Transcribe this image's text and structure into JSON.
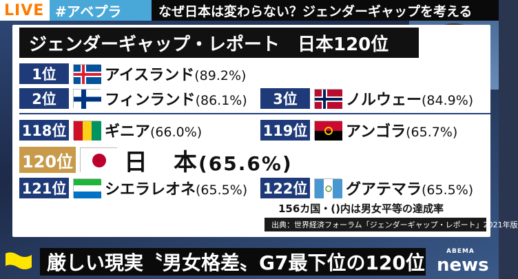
{
  "topbar": {
    "live": "LIVE",
    "hashtag": "#アベプラ",
    "topic": "なぜ日本は変わらない？ジェンダーギャップを考える"
  },
  "panel": {
    "title": "ジェンダーギャップ・レポート　日本120位",
    "rankings": [
      {
        "rank": "1位",
        "country": "アイスランド",
        "pct": "(89.2%)",
        "flag": "iceland-flag"
      },
      {
        "rank": "2位",
        "country": "フィンランド",
        "pct": "(86.1%)",
        "flag": "finland-flag"
      },
      {
        "rank": "3位",
        "country": "ノルウェー",
        "pct": "(84.9%)",
        "flag": "norway-flag"
      },
      {
        "rank": "118位",
        "country": "ギニア",
        "pct": "(66.0%)",
        "flag": "guinea-flag"
      },
      {
        "rank": "119位",
        "country": "アンゴラ",
        "pct": "(65.7%)",
        "flag": "angola-flag"
      },
      {
        "rank": "120位",
        "country": "日　本",
        "pct": "(65.6%)",
        "flag": "japan-flag"
      },
      {
        "rank": "121位",
        "country": "シエラレオネ",
        "pct": "(65.5%)",
        "flag": "sierra-leone-flag"
      },
      {
        "rank": "122位",
        "country": "グアテマラ",
        "pct": "(65.5%)",
        "flag": "guatemala-flag"
      }
    ],
    "note": "156カ国・()内は男女平等の達成率",
    "source": "出典：世界経済フォーラム「ジェンダーギャップ・レポート」2021年版"
  },
  "caption": "厳しい現実〝男女格差〟G7最下位の120位",
  "logo": {
    "small": "ABEMA",
    "big": "news"
  }
}
